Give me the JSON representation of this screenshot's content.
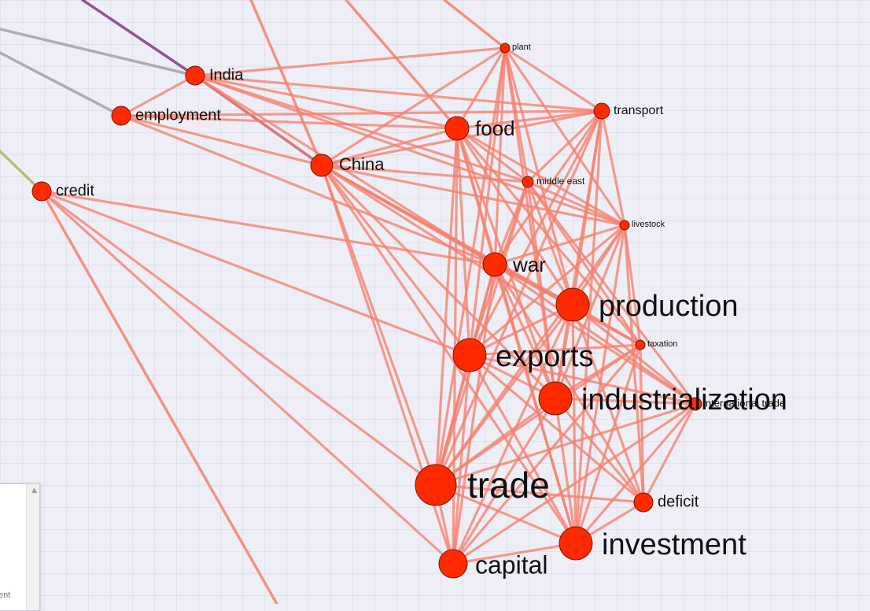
{
  "graph": {
    "edge_color": "#f5806f",
    "node_color": "#ff2a00",
    "nodes": [
      {
        "id": "India",
        "label": "India"
      },
      {
        "id": "employment",
        "label": "employment"
      },
      {
        "id": "credit",
        "label": "credit"
      },
      {
        "id": "China",
        "label": "China"
      },
      {
        "id": "plant",
        "label": "plant"
      },
      {
        "id": "transport",
        "label": "transport"
      },
      {
        "id": "food",
        "label": "food"
      },
      {
        "id": "middle_east",
        "label": "middle east"
      },
      {
        "id": "livestock",
        "label": "livestock"
      },
      {
        "id": "war",
        "label": "war"
      },
      {
        "id": "production",
        "label": "production"
      },
      {
        "id": "taxation",
        "label": "taxation"
      },
      {
        "id": "exports",
        "label": "exports"
      },
      {
        "id": "industrialization",
        "label": "industrialization"
      },
      {
        "id": "international_trade",
        "label": "international trade"
      },
      {
        "id": "trade",
        "label": "trade"
      },
      {
        "id": "deficit",
        "label": "deficit"
      },
      {
        "id": "investment",
        "label": "investment"
      },
      {
        "id": "capital",
        "label": "capital"
      }
    ],
    "edges": [
      [
        "India",
        "China"
      ],
      [
        "India",
        "employment"
      ],
      [
        "India",
        "plant"
      ],
      [
        "India",
        "transport"
      ],
      [
        "India",
        "food"
      ],
      [
        "India",
        "middle_east"
      ],
      [
        "India",
        "livestock"
      ],
      [
        "India",
        "war"
      ],
      [
        "employment",
        "China"
      ],
      [
        "employment",
        "food"
      ],
      [
        "employment",
        "transport"
      ],
      [
        "employment",
        "war"
      ],
      [
        "credit",
        "trade"
      ],
      [
        "credit",
        "capital"
      ],
      [
        "credit",
        "exports"
      ],
      [
        "credit",
        "war"
      ],
      [
        "China",
        "food"
      ],
      [
        "China",
        "plant"
      ],
      [
        "China",
        "transport"
      ],
      [
        "China",
        "middle_east"
      ],
      [
        "China",
        "livestock"
      ],
      [
        "China",
        "war"
      ],
      [
        "China",
        "production"
      ],
      [
        "China",
        "exports"
      ],
      [
        "China",
        "industrialization"
      ],
      [
        "China",
        "trade"
      ],
      [
        "China",
        "capital"
      ],
      [
        "China",
        "investment"
      ],
      [
        "China",
        "taxation"
      ],
      [
        "China",
        "international_trade"
      ],
      [
        "plant",
        "food"
      ],
      [
        "plant",
        "middle_east"
      ],
      [
        "plant",
        "war"
      ],
      [
        "plant",
        "production"
      ],
      [
        "plant",
        "exports"
      ],
      [
        "plant",
        "industrialization"
      ],
      [
        "plant",
        "livestock"
      ],
      [
        "plant",
        "transport"
      ],
      [
        "plant",
        "trade"
      ],
      [
        "transport",
        "food"
      ],
      [
        "transport",
        "war"
      ],
      [
        "transport",
        "production"
      ],
      [
        "transport",
        "exports"
      ],
      [
        "transport",
        "industrialization"
      ],
      [
        "transport",
        "middle_east"
      ],
      [
        "transport",
        "trade"
      ],
      [
        "transport",
        "investment"
      ],
      [
        "transport",
        "livestock"
      ],
      [
        "food",
        "middle_east"
      ],
      [
        "food",
        "war"
      ],
      [
        "food",
        "production"
      ],
      [
        "food",
        "exports"
      ],
      [
        "food",
        "industrialization"
      ],
      [
        "food",
        "trade"
      ],
      [
        "food",
        "livestock"
      ],
      [
        "food",
        "taxation"
      ],
      [
        "food",
        "capital"
      ],
      [
        "food",
        "investment"
      ],
      [
        "middle_east",
        "war"
      ],
      [
        "middle_east",
        "production"
      ],
      [
        "middle_east",
        "exports"
      ],
      [
        "middle_east",
        "industrialization"
      ],
      [
        "middle_east",
        "livestock"
      ],
      [
        "middle_east",
        "taxation"
      ],
      [
        "middle_east",
        "trade"
      ],
      [
        "middle_east",
        "international_trade"
      ],
      [
        "livestock",
        "war"
      ],
      [
        "livestock",
        "production"
      ],
      [
        "livestock",
        "exports"
      ],
      [
        "livestock",
        "industrialization"
      ],
      [
        "livestock",
        "taxation"
      ],
      [
        "livestock",
        "deficit"
      ],
      [
        "livestock",
        "investment"
      ],
      [
        "livestock",
        "trade"
      ],
      [
        "war",
        "production"
      ],
      [
        "war",
        "exports"
      ],
      [
        "war",
        "industrialization"
      ],
      [
        "war",
        "trade"
      ],
      [
        "war",
        "taxation"
      ],
      [
        "war",
        "capital"
      ],
      [
        "war",
        "investment"
      ],
      [
        "war",
        "deficit"
      ],
      [
        "war",
        "international_trade"
      ],
      [
        "production",
        "exports"
      ],
      [
        "production",
        "industrialization"
      ],
      [
        "production",
        "trade"
      ],
      [
        "production",
        "investment"
      ],
      [
        "production",
        "capital"
      ],
      [
        "production",
        "deficit"
      ],
      [
        "production",
        "taxation"
      ],
      [
        "production",
        "international_trade"
      ],
      [
        "taxation",
        "exports"
      ],
      [
        "taxation",
        "trade"
      ],
      [
        "taxation",
        "investment"
      ],
      [
        "taxation",
        "deficit"
      ],
      [
        "taxation",
        "capital"
      ],
      [
        "taxation",
        "industrialization"
      ],
      [
        "exports",
        "industrialization"
      ],
      [
        "exports",
        "trade"
      ],
      [
        "exports",
        "capital"
      ],
      [
        "exports",
        "investment"
      ],
      [
        "exports",
        "deficit"
      ],
      [
        "exports",
        "international_trade"
      ],
      [
        "industrialization",
        "trade"
      ],
      [
        "industrialization",
        "capital"
      ],
      [
        "industrialization",
        "investment"
      ],
      [
        "industrialization",
        "deficit"
      ],
      [
        "industrialization",
        "international_trade"
      ],
      [
        "international_trade",
        "trade"
      ],
      [
        "international_trade",
        "capital"
      ],
      [
        "international_trade",
        "investment"
      ],
      [
        "international_trade",
        "deficit"
      ],
      [
        "trade",
        "capital"
      ],
      [
        "trade",
        "investment"
      ],
      [
        "trade",
        "deficit"
      ],
      [
        "capital",
        "investment"
      ],
      [
        "investment",
        "deficit"
      ]
    ],
    "external_edges": [
      {
        "from": "India",
        "color": "#8b3f8b"
      },
      {
        "from": "China",
        "color": "#8b3f8b"
      },
      {
        "from": "India",
        "color": "#a9a4a6"
      },
      {
        "from": "employment",
        "color": "#a9a4a6"
      },
      {
        "from": "credit",
        "color": "#b5b46a"
      },
      {
        "from": "China",
        "color": "#f5806f"
      },
      {
        "from": "food",
        "color": "#f5806f"
      },
      {
        "from": "plant",
        "color": "#f5806f"
      },
      {
        "from": "credit",
        "color": "#f5806f"
      }
    ]
  },
  "side_panel": {
    "partial_text": "ent"
  }
}
